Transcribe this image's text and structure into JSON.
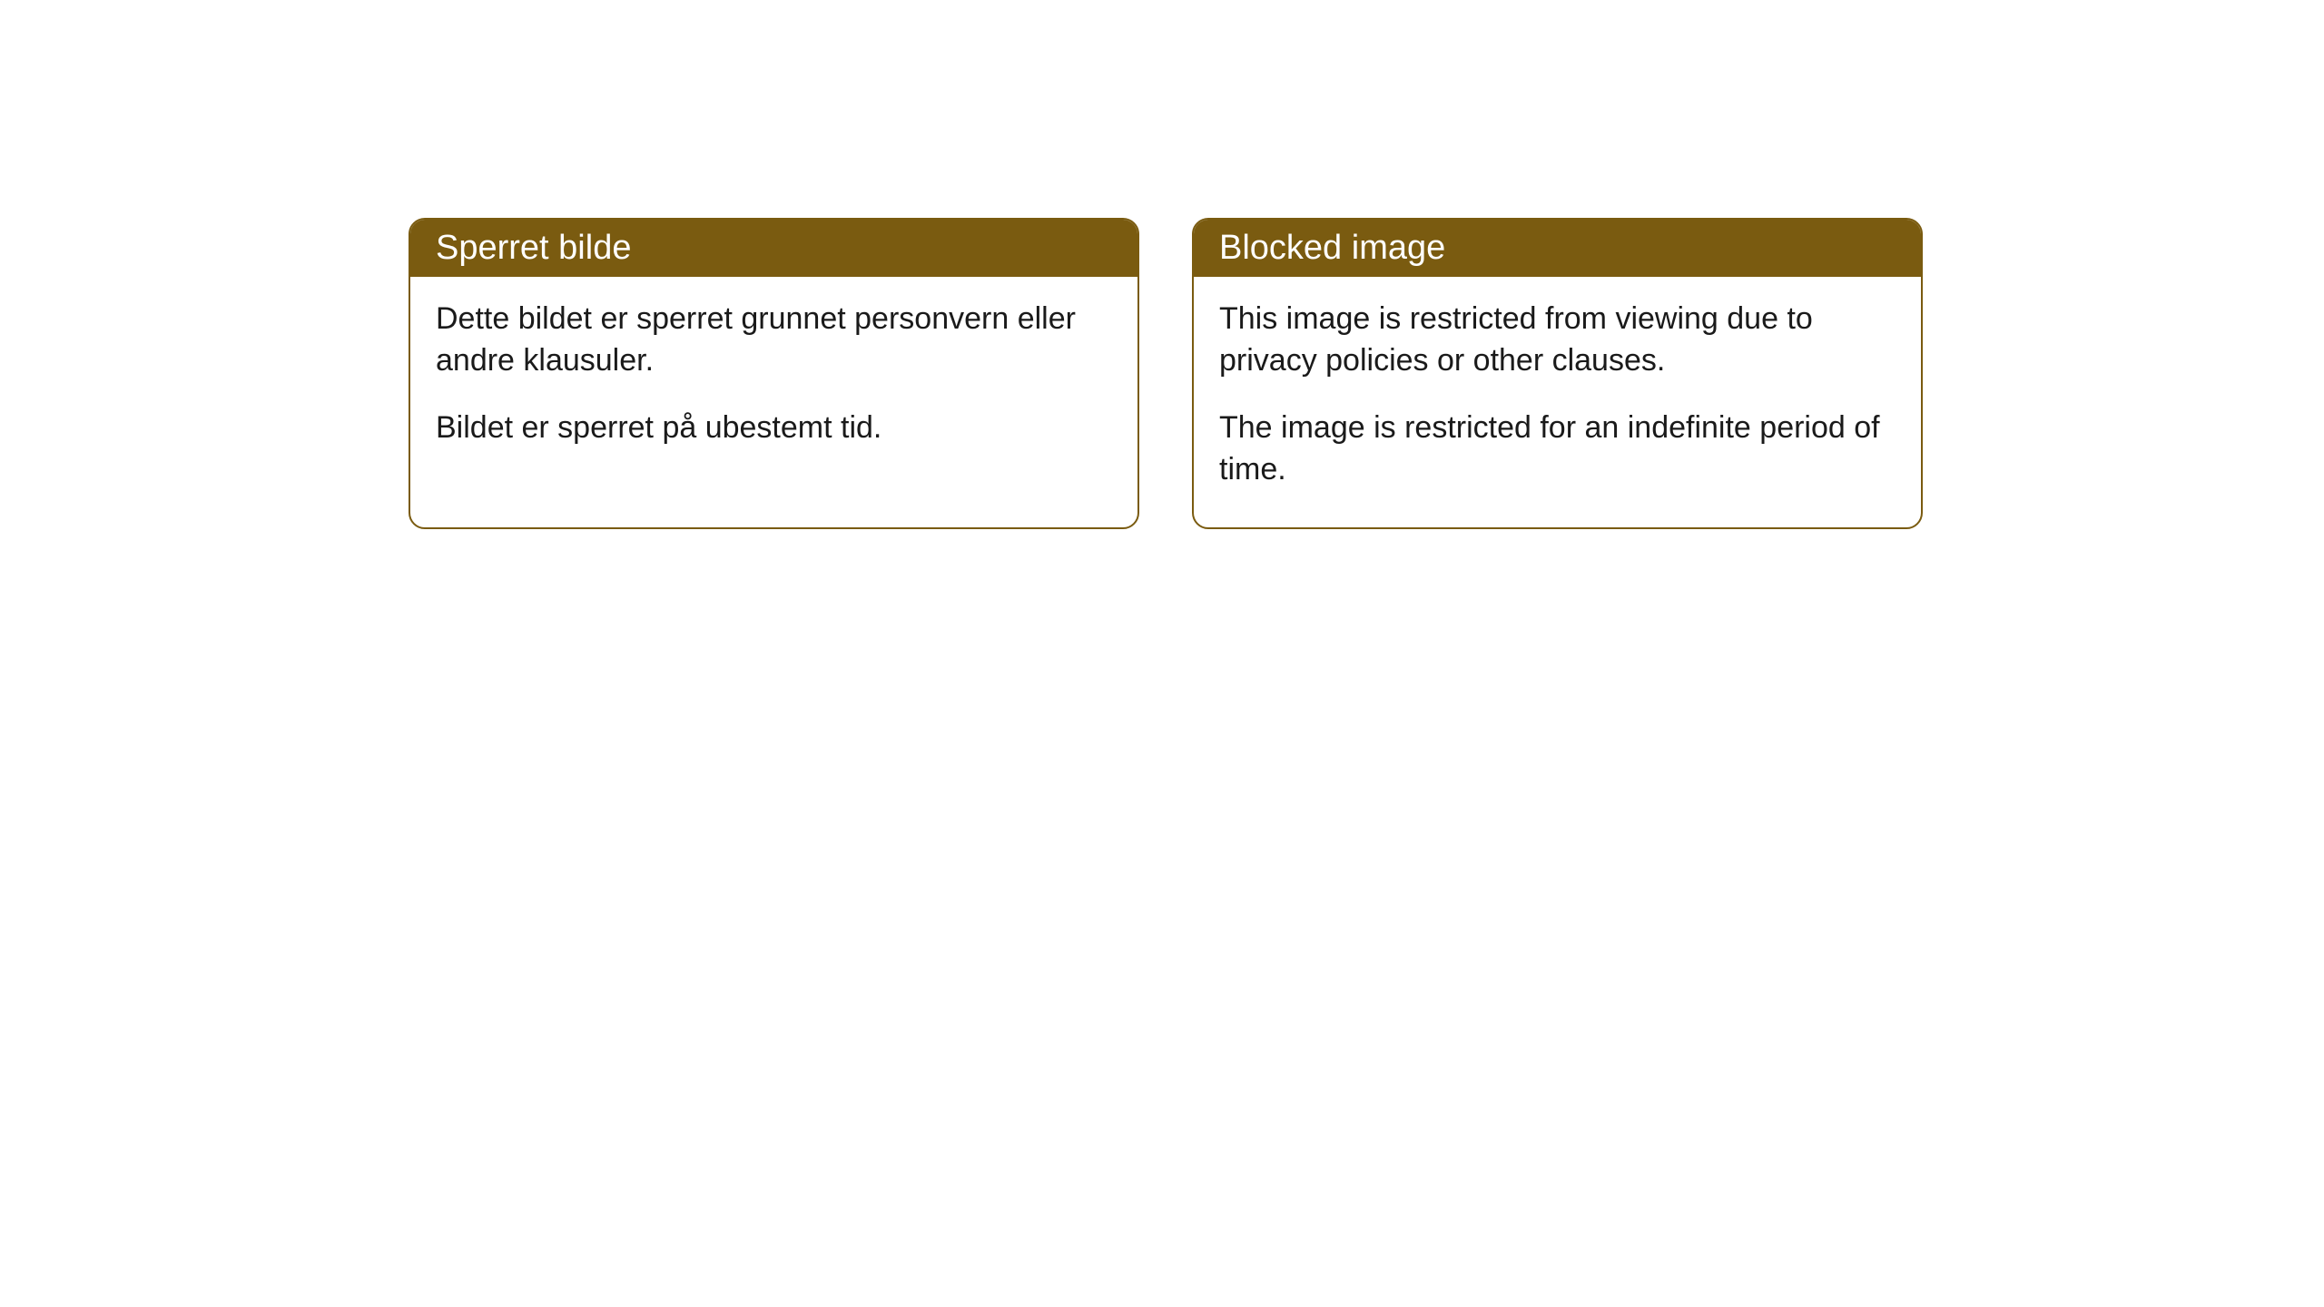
{
  "cards": [
    {
      "title": "Sperret bilde",
      "paragraph1": "Dette bildet er sperret grunnet personvern eller andre klausuler.",
      "paragraph2": "Bildet er sperret på ubestemt tid."
    },
    {
      "title": "Blocked image",
      "paragraph1": "This image is restricted from viewing due to privacy policies or other clauses.",
      "paragraph2": "The image is restricted for an indefinite period of time."
    }
  ],
  "styling": {
    "header_background": "#7a5b10",
    "header_text_color": "#ffffff",
    "border_color": "#7a5b10",
    "body_text_color": "#1a1a1a",
    "card_background": "#ffffff",
    "page_background": "#ffffff",
    "border_radius": 18,
    "title_fontsize": 38,
    "body_fontsize": 34
  }
}
